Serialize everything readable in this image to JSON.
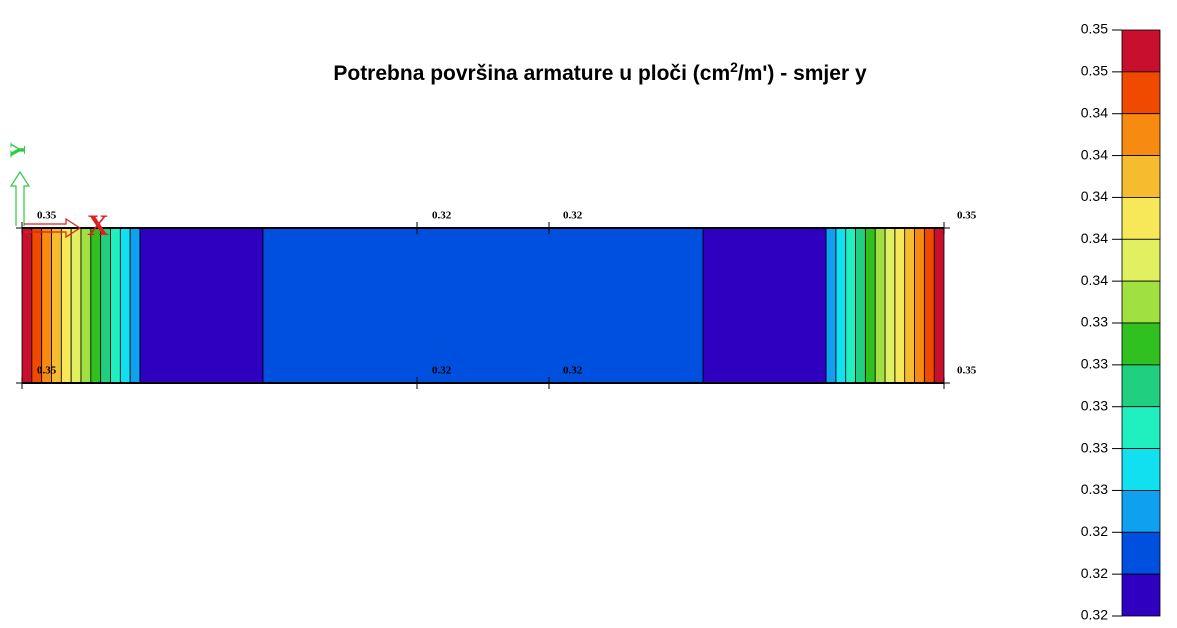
{
  "title": {
    "before": "Potrebna površina armature u ploči (cm",
    "sup": "2",
    "after": "/m') - smjer y"
  },
  "axes": {
    "x": "X",
    "y": "Y"
  },
  "legend": {
    "labels": [
      "0.35",
      "0.35",
      "0.34",
      "0.34",
      "0.34",
      "0.34",
      "0.34",
      "0.33",
      "0.33",
      "0.33",
      "0.33",
      "0.33",
      "0.32",
      "0.32",
      "0.32"
    ],
    "colors": [
      "#c8102e",
      "#f04a00",
      "#f78a10",
      "#f5bc30",
      "#f7e85a",
      "#e0f060",
      "#a0e040",
      "#30c020",
      "#20d080",
      "#20f0c0",
      "#10e0f0",
      "#10a0f0",
      "#0050e0",
      "#3000c0"
    ]
  },
  "slab": {
    "top_labels": [
      "0.35",
      "0.32",
      "0.32",
      "0.35"
    ],
    "bottom_labels": [
      "0.35",
      "0.32",
      "0.32",
      "0.35"
    ]
  }
}
